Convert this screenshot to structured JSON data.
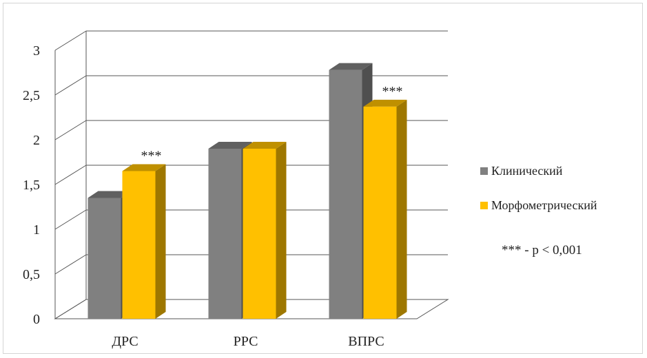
{
  "chart_data": {
    "type": "bar",
    "categories": [
      "ДРС",
      "РРС",
      "ВПРС"
    ],
    "series": [
      {
        "name": "Клинический",
        "values": [
          1.35,
          1.9,
          2.78
        ],
        "color": "#808080"
      },
      {
        "name": "Морфометрический",
        "values": [
          1.65,
          1.9,
          2.37
        ],
        "color": "#ffc000"
      }
    ],
    "ylim": [
      0,
      3
    ],
    "yticks": [
      "0",
      "0,5",
      "1",
      "1,5",
      "2",
      "2,5",
      "3"
    ],
    "significance": [
      {
        "category": "ДРС",
        "series": "Морфометрический",
        "label": "***"
      },
      {
        "category": "ВПРС",
        "series": "Морфометрический",
        "label": "***"
      }
    ],
    "legend_position": "right",
    "grid": true,
    "note": "*** - p < 0,001"
  }
}
